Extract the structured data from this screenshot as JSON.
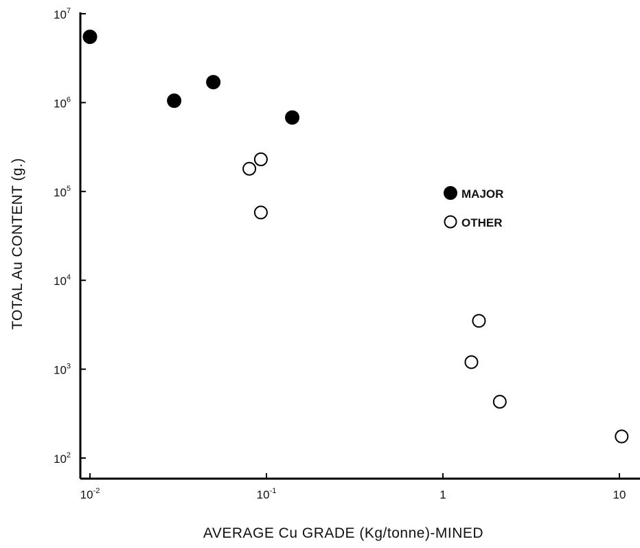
{
  "chart_data": {
    "type": "scatter",
    "xlabel": "AVERAGE Cu GRADE (Kg/tonne)-MINED",
    "ylabel": "TOTAL Au CONTENT (g.)",
    "x_scale": "log",
    "y_scale": "log",
    "xlim": [
      0.01,
      10
    ],
    "ylim": [
      100,
      10000000
    ],
    "grid": false,
    "legend_position": "center-right",
    "x_ticks": [
      {
        "value": 0.01,
        "base": "10",
        "exp": "-2"
      },
      {
        "value": 0.1,
        "base": "10",
        "exp": "-1"
      },
      {
        "value": 1,
        "base": "1",
        "exp": ""
      },
      {
        "value": 10,
        "base": "10",
        "exp": ""
      }
    ],
    "y_ticks": [
      {
        "value": 100,
        "base": "10",
        "exp": "2"
      },
      {
        "value": 1000,
        "base": "10",
        "exp": "3"
      },
      {
        "value": 10000,
        "base": "10",
        "exp": "4"
      },
      {
        "value": 100000,
        "base": "10",
        "exp": "5"
      },
      {
        "value": 1000000,
        "base": "10",
        "exp": "6"
      },
      {
        "value": 10000000,
        "base": "10",
        "exp": "7"
      }
    ],
    "series": [
      {
        "name": "MAJOR",
        "marker": "filled-circle",
        "color": "#000000",
        "points": [
          {
            "x": 0.01,
            "y": 5500000
          },
          {
            "x": 0.03,
            "y": 1050000
          },
          {
            "x": 0.05,
            "y": 1700000
          },
          {
            "x": 0.14,
            "y": 680000
          }
        ]
      },
      {
        "name": "OTHER",
        "marker": "open-circle",
        "color": "#000000",
        "points": [
          {
            "x": 0.08,
            "y": 180000
          },
          {
            "x": 0.093,
            "y": 230000
          },
          {
            "x": 0.093,
            "y": 58000
          },
          {
            "x": 1.45,
            "y": 1200
          },
          {
            "x": 1.6,
            "y": 3500
          },
          {
            "x": 2.1,
            "y": 430
          },
          {
            "x": 10.3,
            "y": 175
          }
        ]
      }
    ]
  }
}
